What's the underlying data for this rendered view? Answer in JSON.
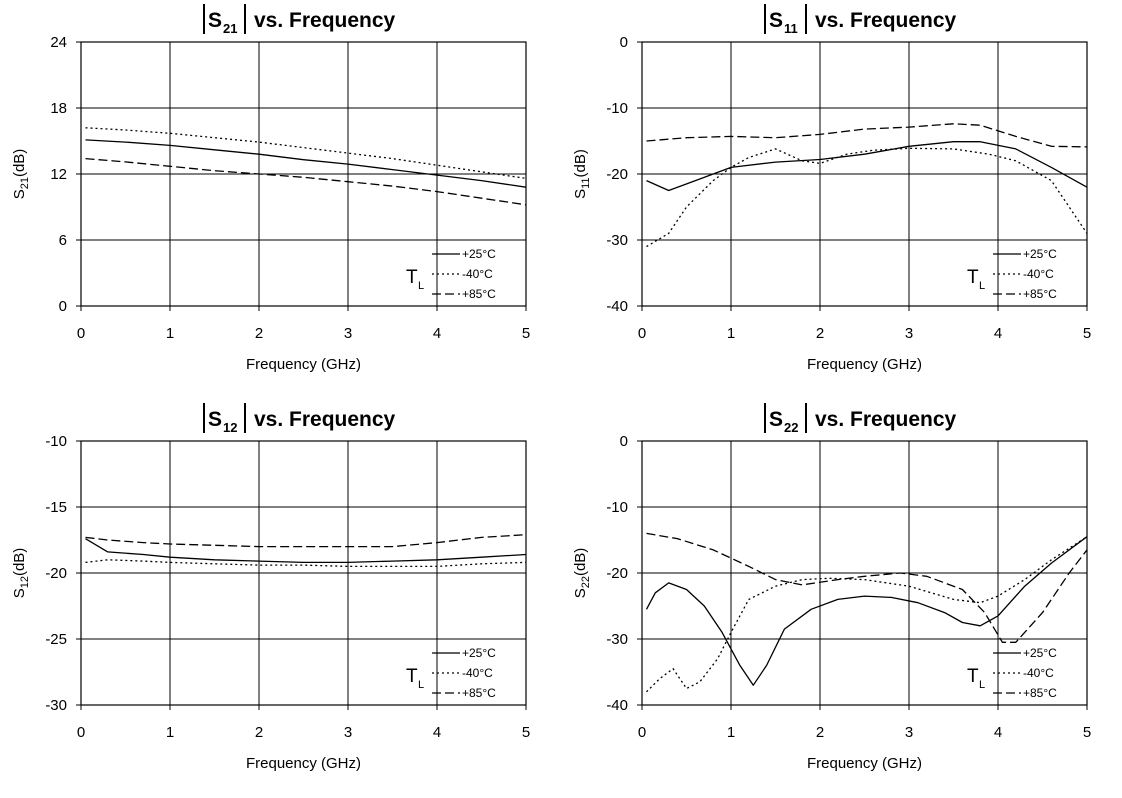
{
  "chart_data": [
    {
      "type": "line",
      "title": "vs. Frequency",
      "title_param": "S",
      "title_param_sub": "21",
      "xlabel": "Frequency (GHz)",
      "ylabel": "S",
      "ylabel_sub": "21",
      "ylabel_unit": "(dB)",
      "xlim": [
        0,
        5
      ],
      "ylim": [
        0,
        24
      ],
      "xticks": [
        0,
        1,
        2,
        3,
        4,
        5
      ],
      "yticks": [
        0,
        6,
        12,
        18,
        24
      ],
      "grid": true,
      "legend_position": "bottom-right",
      "legend_prefix": "T",
      "legend_prefix_sub": "L",
      "series": [
        {
          "name": "+25°C",
          "style": "solid",
          "points": [
            [
              0.05,
              15.1
            ],
            [
              0.5,
              14.9
            ],
            [
              1,
              14.6
            ],
            [
              1.5,
              14.2
            ],
            [
              2,
              13.8
            ],
            [
              2.5,
              13.3
            ],
            [
              3,
              12.9
            ],
            [
              3.5,
              12.4
            ],
            [
              4,
              11.9
            ],
            [
              4.5,
              11.4
            ],
            [
              5,
              10.8
            ]
          ]
        },
        {
          "name": "-40°C",
          "style": "dotted",
          "points": [
            [
              0.05,
              16.2
            ],
            [
              0.5,
              16.0
            ],
            [
              1,
              15.7
            ],
            [
              1.5,
              15.3
            ],
            [
              2,
              14.9
            ],
            [
              2.5,
              14.4
            ],
            [
              3,
              13.9
            ],
            [
              3.5,
              13.4
            ],
            [
              4,
              12.8
            ],
            [
              4.5,
              12.2
            ],
            [
              5,
              11.6
            ]
          ]
        },
        {
          "name": "+85°C",
          "style": "dashed",
          "points": [
            [
              0.05,
              13.4
            ],
            [
              0.5,
              13.1
            ],
            [
              1,
              12.7
            ],
            [
              1.5,
              12.3
            ],
            [
              2,
              12.0
            ],
            [
              2.5,
              11.7
            ],
            [
              3,
              11.3
            ],
            [
              3.5,
              10.9
            ],
            [
              4,
              10.4
            ],
            [
              4.5,
              9.8
            ],
            [
              5,
              9.2
            ]
          ]
        }
      ]
    },
    {
      "type": "line",
      "title": "vs. Frequency",
      "title_param": "S",
      "title_param_sub": "11",
      "xlabel": "Frequency (GHz)",
      "ylabel": "S",
      "ylabel_sub": "11",
      "ylabel_unit": "(dB)",
      "xlim": [
        0,
        5
      ],
      "ylim": [
        -40,
        0
      ],
      "xticks": [
        0,
        1,
        2,
        3,
        4,
        5
      ],
      "yticks": [
        -40,
        -30,
        -20,
        -10,
        0
      ],
      "grid": true,
      "legend_position": "bottom-right",
      "legend_prefix": "T",
      "legend_prefix_sub": "L",
      "series": [
        {
          "name": "+25°C",
          "style": "solid",
          "points": [
            [
              0.05,
              -21
            ],
            [
              0.3,
              -22.5
            ],
            [
              0.6,
              -21
            ],
            [
              1,
              -19
            ],
            [
              1.5,
              -18.2
            ],
            [
              2,
              -17.8
            ],
            [
              2.5,
              -17
            ],
            [
              3,
              -15.8
            ],
            [
              3.5,
              -15.1
            ],
            [
              3.8,
              -15.1
            ],
            [
              4.2,
              -16.2
            ],
            [
              4.6,
              -19
            ],
            [
              5,
              -22
            ]
          ]
        },
        {
          "name": "-40°C",
          "style": "dotted",
          "points": [
            [
              0.05,
              -31
            ],
            [
              0.3,
              -29
            ],
            [
              0.5,
              -25
            ],
            [
              0.8,
              -21
            ],
            [
              1,
              -19
            ],
            [
              1.2,
              -17.5
            ],
            [
              1.5,
              -16.2
            ],
            [
              1.8,
              -18
            ],
            [
              2,
              -18.4
            ],
            [
              2.3,
              -17
            ],
            [
              2.6,
              -16.4
            ],
            [
              3,
              -16.1
            ],
            [
              3.5,
              -16.2
            ],
            [
              3.9,
              -17
            ],
            [
              4.2,
              -18
            ],
            [
              4.6,
              -21
            ],
            [
              5,
              -29
            ]
          ]
        },
        {
          "name": "+85°C",
          "style": "dashed",
          "points": [
            [
              0.05,
              -15
            ],
            [
              0.5,
              -14.5
            ],
            [
              1,
              -14.3
            ],
            [
              1.5,
              -14.5
            ],
            [
              2,
              -14
            ],
            [
              2.5,
              -13.2
            ],
            [
              3,
              -12.9
            ],
            [
              3.5,
              -12.4
            ],
            [
              3.8,
              -12.6
            ],
            [
              4.2,
              -14.3
            ],
            [
              4.6,
              -15.8
            ],
            [
              5,
              -15.9
            ]
          ]
        }
      ]
    },
    {
      "type": "line",
      "title": "vs. Frequency",
      "title_param": "S",
      "title_param_sub": "12",
      "xlabel": "Frequency (GHz)",
      "ylabel": "S",
      "ylabel_sub": "12",
      "ylabel_unit": "(dB)",
      "xlim": [
        0,
        5
      ],
      "ylim": [
        -30,
        -10
      ],
      "xticks": [
        0,
        1,
        2,
        3,
        4,
        5
      ],
      "yticks": [
        -30,
        -25,
        -20,
        -15,
        -10
      ],
      "grid": true,
      "legend_position": "bottom-right",
      "legend_prefix": "T",
      "legend_prefix_sub": "L",
      "series": [
        {
          "name": "+25°C",
          "style": "solid",
          "points": [
            [
              0.05,
              -17.4
            ],
            [
              0.3,
              -18.4
            ],
            [
              0.7,
              -18.6
            ],
            [
              1,
              -18.8
            ],
            [
              1.5,
              -19
            ],
            [
              2,
              -19.1
            ],
            [
              2.5,
              -19.2
            ],
            [
              3,
              -19.2
            ],
            [
              3.5,
              -19.1
            ],
            [
              4,
              -19
            ],
            [
              4.5,
              -18.8
            ],
            [
              5,
              -18.6
            ]
          ]
        },
        {
          "name": "-40°C",
          "style": "dotted",
          "points": [
            [
              0.05,
              -19.2
            ],
            [
              0.3,
              -19
            ],
            [
              0.7,
              -19.1
            ],
            [
              1,
              -19.2
            ],
            [
              1.5,
              -19.3
            ],
            [
              2,
              -19.4
            ],
            [
              2.5,
              -19.4
            ],
            [
              3,
              -19.5
            ],
            [
              3.5,
              -19.5
            ],
            [
              4,
              -19.5
            ],
            [
              4.5,
              -19.3
            ],
            [
              5,
              -19.2
            ]
          ]
        },
        {
          "name": "+85°C",
          "style": "dashed",
          "points": [
            [
              0.05,
              -17.3
            ],
            [
              0.3,
              -17.5
            ],
            [
              0.7,
              -17.7
            ],
            [
              1,
              -17.8
            ],
            [
              1.5,
              -17.9
            ],
            [
              2,
              -18
            ],
            [
              2.5,
              -18
            ],
            [
              3,
              -18
            ],
            [
              3.5,
              -18
            ],
            [
              4,
              -17.7
            ],
            [
              4.5,
              -17.3
            ],
            [
              5,
              -17.1
            ]
          ]
        }
      ]
    },
    {
      "type": "line",
      "title": "vs. Frequency",
      "title_param": "S",
      "title_param_sub": "22",
      "xlabel": "Frequency (GHz)",
      "ylabel": "S",
      "ylabel_sub": "22",
      "ylabel_unit": "(dB)",
      "xlim": [
        0,
        5
      ],
      "ylim": [
        -40,
        0
      ],
      "xticks": [
        0,
        1,
        2,
        3,
        4,
        5
      ],
      "yticks": [
        -40,
        -30,
        -20,
        -10,
        0
      ],
      "grid": true,
      "legend_position": "bottom-right",
      "legend_prefix": "T",
      "legend_prefix_sub": "L",
      "series": [
        {
          "name": "+25°C",
          "style": "solid",
          "points": [
            [
              0.05,
              -25.5
            ],
            [
              0.15,
              -23
            ],
            [
              0.3,
              -21.5
            ],
            [
              0.5,
              -22.5
            ],
            [
              0.7,
              -25
            ],
            [
              0.9,
              -29
            ],
            [
              1.1,
              -34
            ],
            [
              1.25,
              -37
            ],
            [
              1.4,
              -34
            ],
            [
              1.6,
              -28.5
            ],
            [
              1.9,
              -25.5
            ],
            [
              2.2,
              -24
            ],
            [
              2.5,
              -23.5
            ],
            [
              2.8,
              -23.7
            ],
            [
              3.1,
              -24.5
            ],
            [
              3.4,
              -26
            ],
            [
              3.6,
              -27.5
            ],
            [
              3.8,
              -28
            ],
            [
              4,
              -26.5
            ],
            [
              4.3,
              -22
            ],
            [
              4.6,
              -18.5
            ],
            [
              5,
              -14.5
            ]
          ]
        },
        {
          "name": "-40°C",
          "style": "dotted",
          "points": [
            [
              0.05,
              -38
            ],
            [
              0.2,
              -36
            ],
            [
              0.35,
              -34.5
            ],
            [
              0.5,
              -37.5
            ],
            [
              0.65,
              -36.5
            ],
            [
              0.85,
              -33
            ],
            [
              1,
              -29
            ],
            [
              1.2,
              -24
            ],
            [
              1.5,
              -22
            ],
            [
              1.8,
              -21
            ],
            [
              2.1,
              -20.8
            ],
            [
              2.5,
              -21
            ],
            [
              3,
              -22
            ],
            [
              3.5,
              -24
            ],
            [
              3.8,
              -24.5
            ],
            [
              4,
              -23.5
            ],
            [
              4.3,
              -21
            ],
            [
              4.6,
              -18
            ],
            [
              5,
              -14.5
            ]
          ]
        },
        {
          "name": "+85°C",
          "style": "dashed",
          "points": [
            [
              0.05,
              -14
            ],
            [
              0.4,
              -14.8
            ],
            [
              0.8,
              -16.5
            ],
            [
              1.2,
              -19
            ],
            [
              1.5,
              -21
            ],
            [
              1.8,
              -21.8
            ],
            [
              2.2,
              -21
            ],
            [
              2.5,
              -20.5
            ],
            [
              2.9,
              -20
            ],
            [
              3.2,
              -20.5
            ],
            [
              3.6,
              -22.5
            ],
            [
              3.85,
              -26
            ],
            [
              4.05,
              -30.5
            ],
            [
              4.2,
              -30.5
            ],
            [
              4.5,
              -26
            ],
            [
              4.8,
              -20
            ],
            [
              5,
              -16.5
            ]
          ]
        }
      ]
    }
  ]
}
